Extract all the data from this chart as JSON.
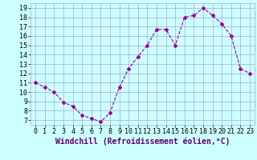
{
  "x": [
    0,
    1,
    2,
    3,
    4,
    5,
    6,
    7,
    8,
    9,
    10,
    11,
    12,
    13,
    14,
    15,
    16,
    17,
    18,
    19,
    20,
    21,
    22,
    23
  ],
  "y": [
    11.0,
    10.5,
    10.0,
    8.9,
    8.5,
    7.5,
    7.2,
    6.8,
    7.8,
    10.5,
    12.5,
    13.8,
    15.0,
    16.7,
    16.7,
    15.0,
    18.0,
    18.2,
    19.0,
    18.2,
    17.3,
    16.0,
    12.5,
    12.0
  ],
  "line_color": "#990099",
  "marker": "D",
  "marker_size": 2,
  "bg_color": "#ccffff",
  "grid_color": "#aaaacc",
  "xlabel": "Windchill (Refroidissement éolien,°C)",
  "ylim": [
    6.5,
    19.5
  ],
  "yticks": [
    7,
    8,
    9,
    10,
    11,
    12,
    13,
    14,
    15,
    16,
    17,
    18,
    19
  ],
  "xticks": [
    0,
    1,
    2,
    3,
    4,
    5,
    6,
    7,
    8,
    9,
    10,
    11,
    12,
    13,
    14,
    15,
    16,
    17,
    18,
    19,
    20,
    21,
    22,
    23
  ],
  "xlim": [
    -0.5,
    23.5
  ],
  "tick_fontsize": 6,
  "xlabel_fontsize": 7
}
